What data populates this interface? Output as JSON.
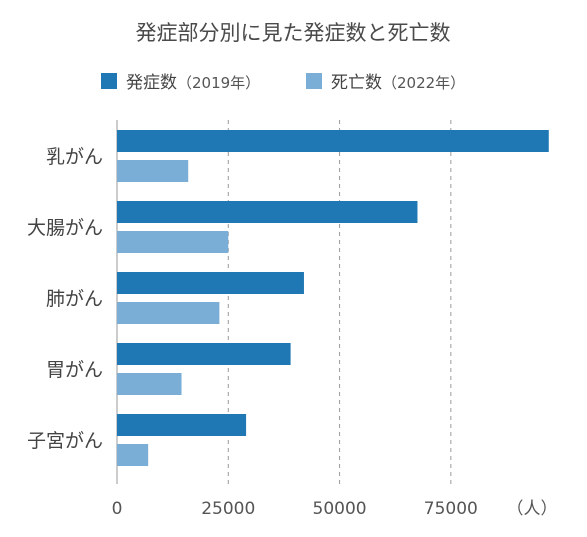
{
  "chart_data": {
    "type": "bar",
    "orientation": "horizontal",
    "title": "発症部分別に見た発症数と死亡数",
    "categories": [
      "乳がん",
      "大腸がん",
      "肺がん",
      "胃がん",
      "子宮がん"
    ],
    "series": [
      {
        "name": "発症数",
        "name_suffix": "（2019年）",
        "color": "#1f77b4",
        "values": [
          97000,
          67500,
          42000,
          39000,
          29000
        ]
      },
      {
        "name": "死亡数",
        "name_suffix": "（2022年）",
        "color": "#7aaed6",
        "values": [
          16000,
          25000,
          23000,
          14500,
          7000
        ]
      }
    ],
    "x_ticks": [
      "0",
      "25000",
      "50000",
      "75000"
    ],
    "x_tick_values": [
      0,
      25000,
      50000,
      75000
    ],
    "x_unit": "（人）",
    "xlim": [
      0,
      97500
    ],
    "grid": true,
    "legend_position": "top"
  }
}
